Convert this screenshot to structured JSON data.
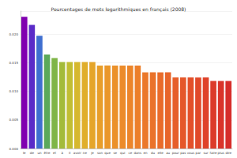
{
  "chart_data": {
    "type": "bar",
    "title": "Pourcentages de mots logarithmiques en français (2008)",
    "categories": [
      "le",
      "de",
      "un",
      "être",
      "et",
      "à",
      "il",
      "avoir",
      "ne",
      "je",
      "son",
      "que",
      "se",
      "qui",
      "ce",
      "dans",
      "en",
      "du",
      "elle",
      "au",
      "pour",
      "pas",
      "vous",
      "par",
      "sur",
      "faire",
      "plus",
      "dire"
    ],
    "values": [
      0.023,
      0.0216,
      0.0197,
      0.0164,
      0.0158,
      0.0151,
      0.0151,
      0.0151,
      0.0151,
      0.0151,
      0.0145,
      0.0145,
      0.0145,
      0.0145,
      0.0145,
      0.0145,
      0.0133,
      0.0133,
      0.0133,
      0.0133,
      0.0124,
      0.0124,
      0.0124,
      0.0124,
      0.0124,
      0.0118,
      0.0118,
      0.0118
    ],
    "colors": [
      "#8000b0",
      "#5a2bc8",
      "#3f6fd0",
      "#5ba95a",
      "#7fb547",
      "#a3bb3a",
      "#c1be33",
      "#d6b82e",
      "#e0ae2b",
      "#e5a52a",
      "#e89e2a",
      "#ea972a",
      "#eb912a",
      "#ec8b2a",
      "#ec852a",
      "#ec7f2a",
      "#eb782a",
      "#ea722a",
      "#e96b2a",
      "#e8652a",
      "#e65e2a",
      "#e5572a",
      "#e3502a",
      "#e1492a",
      "#df422a",
      "#dc3b2a",
      "#d9342a",
      "#d62d2a"
    ],
    "ylim": [
      0,
      0.024
    ],
    "yticks": [
      {
        "value": 0,
        "label": "0.000"
      },
      0.005,
      {
        "value": 0.01,
        "label": "0.010"
      },
      0.015,
      {
        "value": 0.02,
        "label": "0.020"
      }
    ],
    "grid": true
  }
}
